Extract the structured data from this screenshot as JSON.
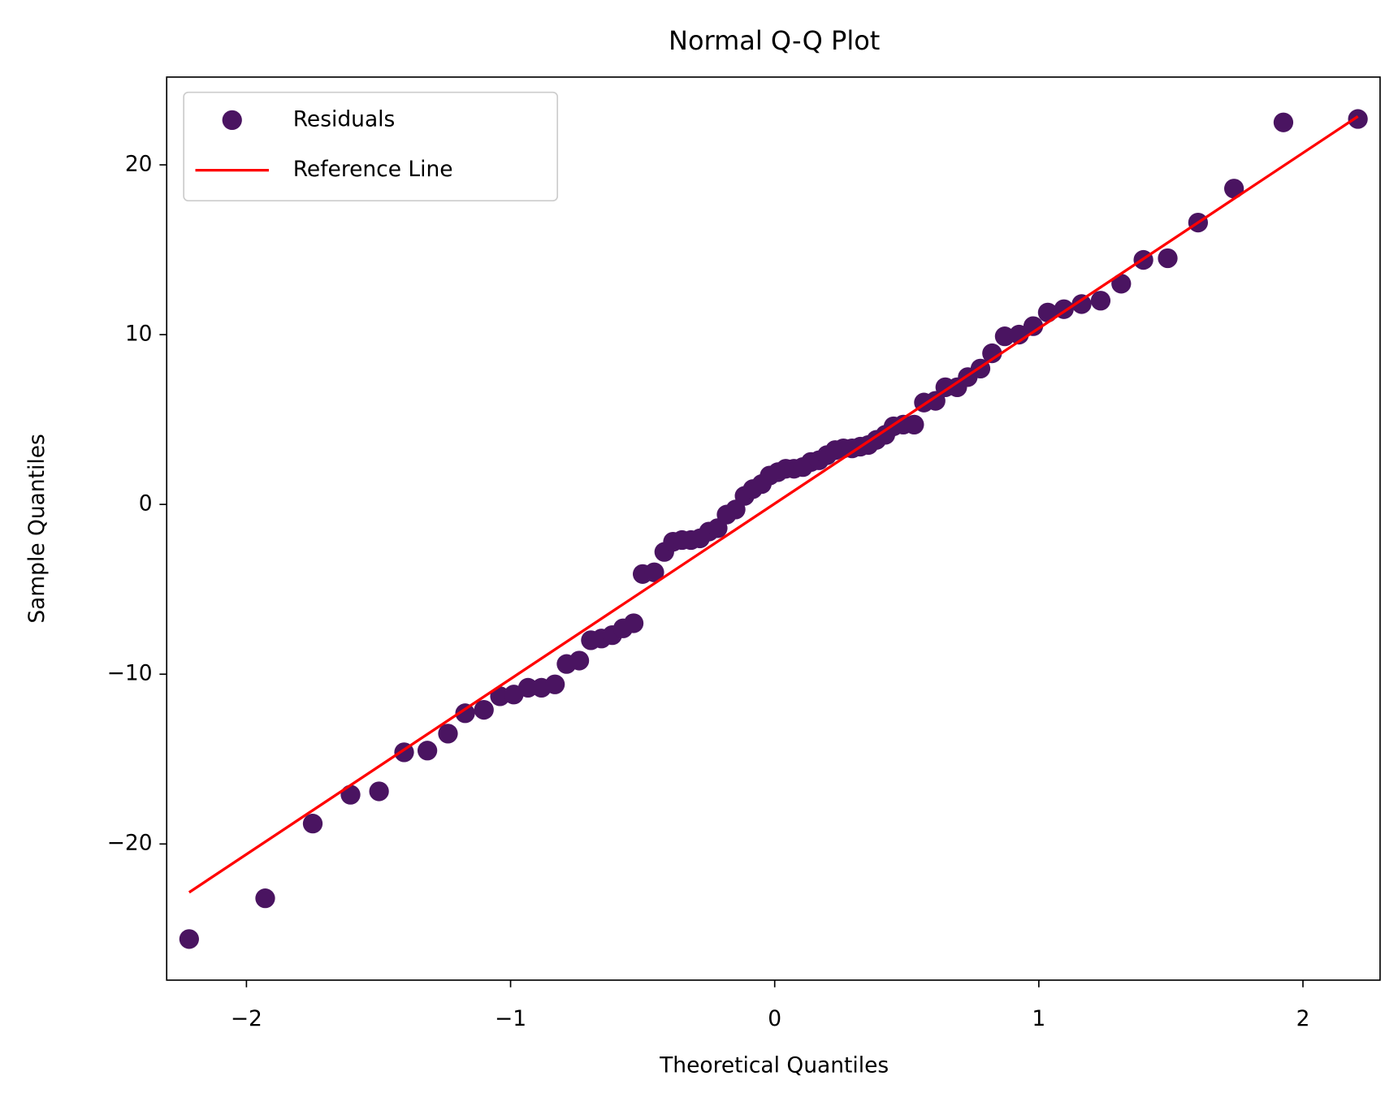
{
  "chart_data": {
    "type": "scatter",
    "title": "Normal Q-Q Plot",
    "x_label": "Theoretical Quantiles",
    "y_label": "Sample Quantiles",
    "xlim": [
      -2.302,
      2.292
    ],
    "ylim": [
      -28.02,
      25.17
    ],
    "xticks": [
      {
        "value": -2,
        "label": "−2"
      },
      {
        "value": -1,
        "label": "−1"
      },
      0,
      1,
      2
    ],
    "yticks": [
      {
        "value": -20,
        "label": "−20"
      },
      {
        "value": -10,
        "label": "−10"
      },
      0,
      10,
      20
    ],
    "legend": "upper left",
    "series": [
      {
        "name": "Residuals",
        "color": "#4a1461",
        "mode": "markers",
        "x": [
          -2.217,
          -1.929,
          -1.749,
          -1.606,
          -1.498,
          -1.403,
          -1.315,
          -1.237,
          -1.172,
          -1.101,
          -1.04,
          -0.988,
          -0.934,
          -0.883,
          -0.832,
          -0.788,
          -0.74,
          -0.696,
          -0.656,
          -0.615,
          -0.574,
          -0.534,
          -0.5,
          -0.456,
          -0.418,
          -0.385,
          -0.351,
          -0.317,
          -0.283,
          -0.249,
          -0.216,
          -0.182,
          -0.148,
          -0.114,
          -0.083,
          -0.049,
          -0.019,
          0.012,
          0.042,
          0.073,
          0.107,
          0.137,
          0.168,
          0.198,
          0.229,
          0.26,
          0.293,
          0.324,
          0.355,
          0.385,
          0.419,
          0.45,
          0.487,
          0.528,
          0.565,
          0.609,
          0.646,
          0.691,
          0.731,
          0.779,
          0.823,
          0.871,
          0.925,
          0.979,
          1.034,
          1.095,
          1.162,
          1.234,
          1.312,
          1.396,
          1.488,
          1.603,
          1.739,
          1.926,
          2.208
        ],
        "values": [
          -25.6,
          -23.2,
          -18.8,
          -17.1,
          -16.9,
          -14.6,
          -14.5,
          -13.5,
          -12.3,
          -12.1,
          -11.3,
          -11.2,
          -10.8,
          -10.8,
          -10.6,
          -9.4,
          -9.2,
          -8.0,
          -7.9,
          -7.7,
          -7.3,
          -7.0,
          -4.1,
          -4.0,
          -2.8,
          -2.2,
          -2.1,
          -2.1,
          -2.0,
          -1.6,
          -1.4,
          -0.6,
          -0.3,
          0.5,
          0.9,
          1.2,
          1.7,
          1.9,
          2.1,
          2.1,
          2.2,
          2.5,
          2.6,
          2.9,
          3.2,
          3.3,
          3.3,
          3.4,
          3.5,
          3.8,
          4.1,
          4.6,
          4.7,
          4.7,
          6.0,
          6.1,
          6.9,
          6.9,
          7.5,
          8.0,
          8.9,
          9.9,
          10.0,
          10.5,
          11.3,
          11.5,
          11.8,
          12.0,
          13.0,
          14.4,
          14.5,
          16.6,
          18.6,
          22.5,
          22.7
        ]
      },
      {
        "name": "Reference Line",
        "color": "#ff0000",
        "mode": "line",
        "x": [
          -2.217,
          2.208
        ],
        "values": [
          -22.85,
          22.85
        ]
      }
    ]
  }
}
